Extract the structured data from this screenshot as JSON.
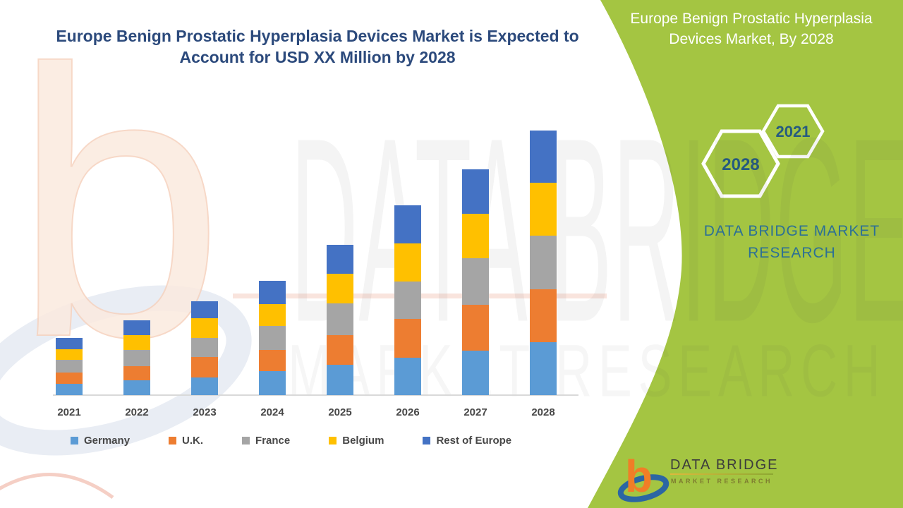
{
  "page_title": {
    "line1": "Europe Benign Prostatic Hyperplasia Devices Market is Expected to",
    "line2": "Account for USD XX Million by 2028"
  },
  "side_panel": {
    "title_line1": "Europe Benign Prostatic Hyperplasia",
    "title_line2": "Devices Market, By 2028",
    "hexagons": [
      {
        "label": "2021"
      },
      {
        "label": "2028"
      }
    ],
    "brand_line1": "DATA BRIDGE MARKET",
    "brand_line2": "RESEARCH",
    "panel_color": "#A4C542",
    "hexagon_outline_color": "#FFFFFF",
    "hexagon_text_color": "#265B80",
    "brand_text_color": "#2C7095"
  },
  "logo": {
    "mark_letter": "b",
    "name": "DATA BRIDGE",
    "subtitle": "MARKET  RESEARCH",
    "mark_orange": "#F07E27",
    "mark_blue": "#2B66A3"
  },
  "watermark": {
    "big_text": "DATA BRIDGE",
    "sub_text": "MARKET RESEARCH",
    "ghost_letter": "b"
  },
  "chart_data": {
    "type": "bar",
    "stacked": true,
    "title": "Europe Benign Prostatic Hyperplasia Devices Market is Expected to Account for USD XX Million by 2028",
    "xlabel": "",
    "ylabel": "",
    "y_axis_visible": false,
    "grid": false,
    "legend_position": "bottom",
    "note": "No y-axis scale shown; values are relative units estimated from bar pixel heights (1 unit ≈ 1 px).",
    "categories": [
      "2021",
      "2022",
      "2023",
      "2024",
      "2025",
      "2026",
      "2027",
      "2028"
    ],
    "series": [
      {
        "name": "Germany",
        "color": "#5B9BD5",
        "values": [
          16,
          21,
          25,
          34,
          43,
          53,
          63,
          75
        ]
      },
      {
        "name": "U.K.",
        "color": "#ED7D31",
        "values": [
          16,
          20,
          29,
          30,
          42,
          55,
          65,
          75
        ]
      },
      {
        "name": "France",
        "color": "#A5A5A5",
        "values": [
          18,
          23,
          27,
          34,
          45,
          53,
          66,
          76
        ]
      },
      {
        "name": "Belgium",
        "color": "#FFC000",
        "values": [
          15,
          21,
          28,
          31,
          42,
          54,
          63,
          75
        ]
      },
      {
        "name": "Rest of Europe",
        "color": "#4472C4",
        "values": [
          16,
          21,
          24,
          33,
          41,
          54,
          63,
          74
        ]
      }
    ],
    "totals": [
      81,
      106,
      133,
      162,
      213,
      269,
      320,
      375
    ],
    "axis_line_color": "#D9D9D9",
    "label_color": "#474747"
  }
}
